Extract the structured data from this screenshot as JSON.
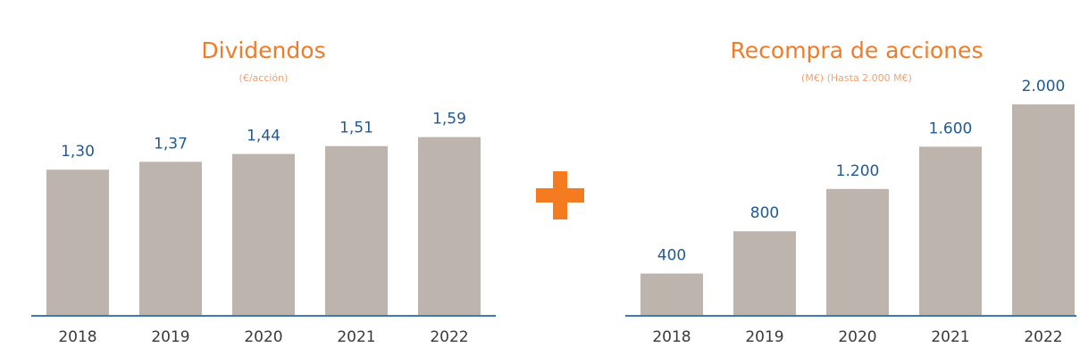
{
  "chart_data": [
    {
      "type": "bar",
      "title": "Dividendos",
      "subtitle": "(€/acción)",
      "categories": [
        "2018",
        "2019",
        "2020",
        "2021",
        "2022"
      ],
      "values": [
        1.3,
        1.37,
        1.44,
        1.51,
        1.59
      ],
      "value_labels": [
        "1,30",
        "1,37",
        "1,44",
        "1,51",
        "1,59"
      ],
      "color": "#bdb4ae",
      "ylim": [
        0,
        2
      ]
    },
    {
      "type": "bar",
      "title": "Recompra de acciones",
      "subtitle": "(M€) (Hasta 2.000 M€)",
      "categories": [
        "2018",
        "2019",
        "2020",
        "2021",
        "2022"
      ],
      "values": [
        400,
        800,
        1200,
        1600,
        2000
      ],
      "value_labels": [
        "400",
        "800",
        "1.200",
        "1.600",
        "2.000"
      ],
      "color": "#bdb4ae",
      "ylim": [
        0,
        2000
      ]
    }
  ]
}
